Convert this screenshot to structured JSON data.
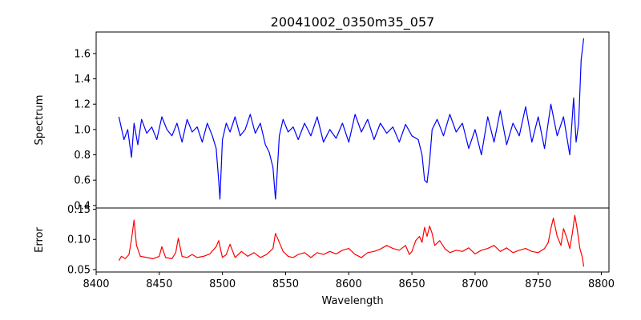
{
  "chart_data": {
    "type": "line",
    "title": "20041002_0350m35_057",
    "xlabel": "Wavelength",
    "xlim": [
      8400,
      8806
    ],
    "xticks": [
      8400,
      8450,
      8500,
      8550,
      8600,
      8650,
      8700,
      8750,
      8800
    ],
    "panels": [
      {
        "name": "spectrum",
        "ylabel": "Spectrum",
        "ylim": [
          0.38,
          1.77
        ],
        "yticks": [
          0.4,
          0.6,
          0.8,
          1.0,
          1.2,
          1.4,
          1.6
        ],
        "ytick_labels": [
          "0.4",
          "0.6",
          "0.8",
          "1.0",
          "1.2",
          "1.4",
          "1.6"
        ],
        "color": "#0000ff",
        "series": {
          "x": [
            8418,
            8422,
            8425,
            8428,
            8430,
            8433,
            8436,
            8440,
            8444,
            8448,
            8452,
            8456,
            8460,
            8464,
            8468,
            8472,
            8476,
            8480,
            8484,
            8488,
            8492,
            8495,
            8497,
            8498,
            8500,
            8503,
            8506,
            8510,
            8514,
            8518,
            8522,
            8526,
            8530,
            8534,
            8537,
            8540,
            8542,
            8543,
            8545,
            8548,
            8552,
            8556,
            8560,
            8565,
            8570,
            8575,
            8580,
            8585,
            8590,
            8595,
            8600,
            8605,
            8610,
            8615,
            8620,
            8625,
            8630,
            8635,
            8640,
            8645,
            8650,
            8655,
            8658,
            8660,
            8662,
            8664,
            8666,
            8670,
            8675,
            8680,
            8685,
            8690,
            8695,
            8700,
            8705,
            8710,
            8715,
            8720,
            8725,
            8730,
            8735,
            8740,
            8745,
            8750,
            8755,
            8760,
            8765,
            8770,
            8775,
            8778,
            8780,
            8782,
            8784,
            8786
          ],
          "y": [
            1.1,
            0.92,
            1.0,
            0.78,
            1.05,
            0.88,
            1.08,
            0.97,
            1.02,
            0.92,
            1.1,
            1.0,
            0.95,
            1.05,
            0.9,
            1.08,
            0.98,
            1.02,
            0.9,
            1.05,
            0.95,
            0.85,
            0.6,
            0.45,
            0.92,
            1.05,
            0.98,
            1.1,
            0.95,
            1.0,
            1.12,
            0.97,
            1.05,
            0.88,
            0.82,
            0.7,
            0.45,
            0.6,
            0.95,
            1.08,
            0.98,
            1.02,
            0.92,
            1.05,
            0.95,
            1.1,
            0.9,
            1.0,
            0.93,
            1.05,
            0.9,
            1.12,
            0.98,
            1.08,
            0.92,
            1.05,
            0.97,
            1.02,
            0.9,
            1.04,
            0.95,
            0.92,
            0.8,
            0.6,
            0.58,
            0.75,
            1.0,
            1.08,
            0.95,
            1.12,
            0.98,
            1.05,
            0.85,
            1.0,
            0.8,
            1.1,
            0.9,
            1.15,
            0.88,
            1.05,
            0.95,
            1.18,
            0.9,
            1.1,
            0.85,
            1.2,
            0.95,
            1.1,
            0.8,
            1.25,
            0.9,
            1.05,
            1.55,
            1.72
          ]
        }
      },
      {
        "name": "error",
        "ylabel": "Error",
        "ylim": [
          0.046,
          0.152
        ],
        "yticks": [
          0.05,
          0.1,
          0.15
        ],
        "ytick_labels": [
          "0.05",
          "0.10",
          "0.15"
        ],
        "color": "#ff0000",
        "series": {
          "x": [
            8418,
            8420,
            8423,
            8426,
            8428,
            8430,
            8432,
            8435,
            8440,
            8445,
            8450,
            8452,
            8455,
            8460,
            8463,
            8465,
            8468,
            8472,
            8476,
            8480,
            8485,
            8490,
            8495,
            8497,
            8500,
            8503,
            8506,
            8510,
            8515,
            8520,
            8525,
            8530,
            8535,
            8540,
            8542,
            8544,
            8548,
            8552,
            8556,
            8560,
            8565,
            8570,
            8575,
            8580,
            8585,
            8590,
            8595,
            8600,
            8605,
            8610,
            8615,
            8620,
            8625,
            8630,
            8635,
            8640,
            8645,
            8648,
            8650,
            8653,
            8656,
            8658,
            8660,
            8662,
            8664,
            8666,
            8668,
            8672,
            8676,
            8680,
            8685,
            8690,
            8695,
            8700,
            8705,
            8710,
            8715,
            8720,
            8725,
            8730,
            8735,
            8740,
            8745,
            8750,
            8755,
            8758,
            8760,
            8762,
            8765,
            8768,
            8770,
            8773,
            8775,
            8777,
            8779,
            8781,
            8783,
            8785,
            8786
          ],
          "y": [
            0.065,
            0.072,
            0.068,
            0.075,
            0.1,
            0.132,
            0.09,
            0.072,
            0.07,
            0.068,
            0.072,
            0.088,
            0.07,
            0.068,
            0.078,
            0.102,
            0.072,
            0.07,
            0.075,
            0.07,
            0.072,
            0.076,
            0.088,
            0.098,
            0.07,
            0.075,
            0.092,
            0.07,
            0.08,
            0.072,
            0.078,
            0.07,
            0.075,
            0.085,
            0.11,
            0.1,
            0.08,
            0.072,
            0.07,
            0.075,
            0.078,
            0.07,
            0.078,
            0.075,
            0.08,
            0.076,
            0.082,
            0.085,
            0.075,
            0.07,
            0.078,
            0.08,
            0.084,
            0.09,
            0.085,
            0.082,
            0.09,
            0.075,
            0.08,
            0.098,
            0.105,
            0.095,
            0.12,
            0.105,
            0.122,
            0.11,
            0.09,
            0.098,
            0.085,
            0.078,
            0.082,
            0.08,
            0.086,
            0.076,
            0.082,
            0.085,
            0.09,
            0.08,
            0.086,
            0.078,
            0.082,
            0.085,
            0.08,
            0.078,
            0.085,
            0.095,
            0.118,
            0.135,
            0.105,
            0.09,
            0.118,
            0.1,
            0.085,
            0.11,
            0.14,
            0.115,
            0.085,
            0.07,
            0.055
          ]
        }
      }
    ]
  }
}
